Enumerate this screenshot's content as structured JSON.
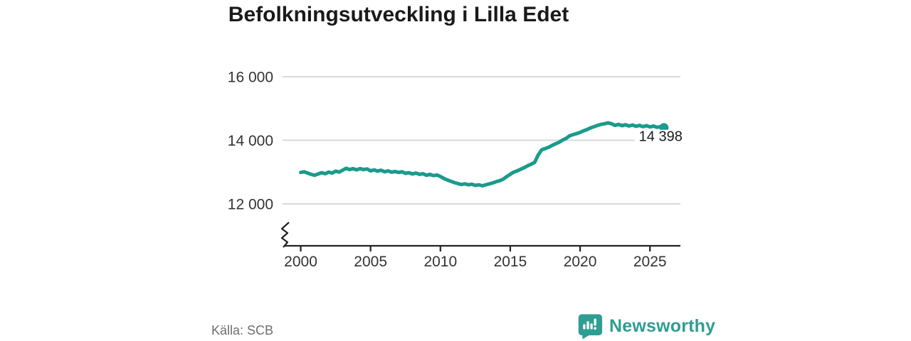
{
  "title": "Befolkningsutveckling i Lilla Edet",
  "colors": {
    "line": "#1a9b8c",
    "brand": "#2f9d92",
    "grid": "#d9d9d9",
    "axis": "#222222",
    "tick_text": "#333333",
    "title_text": "#1a1a1a",
    "muted_text": "#6e6e6e"
  },
  "chart_data": {
    "type": "line",
    "title": "Befolkningsutveckling i Lilla Edet",
    "xlabel": "",
    "ylabel": "",
    "grid": "horizontal",
    "legend": "none",
    "axis_break": true,
    "xlim": [
      1998.7,
      2027.2
    ],
    "ylim": [
      12000,
      16000
    ],
    "y_ticks": [
      {
        "value": 16000,
        "label": "16 000"
      },
      {
        "value": 14000,
        "label": "14 000"
      },
      {
        "value": 12000,
        "label": "12 000"
      }
    ],
    "x_ticks": [
      {
        "value": 2000,
        "label": "2000"
      },
      {
        "value": 2005,
        "label": "2005"
      },
      {
        "value": 2010,
        "label": "2010"
      },
      {
        "value": 2015,
        "label": "2015"
      },
      {
        "value": 2020,
        "label": "2020"
      },
      {
        "value": 2025,
        "label": "2025"
      }
    ],
    "end_label": "14 398",
    "end_value": 14398,
    "series": [
      {
        "name": "Befolkning",
        "x": [
          2000,
          2000.25,
          2000.5,
          2000.75,
          2001,
          2001.25,
          2001.5,
          2001.75,
          2002,
          2002.25,
          2002.5,
          2002.75,
          2003,
          2003.25,
          2003.5,
          2003.75,
          2004,
          2004.25,
          2004.5,
          2004.75,
          2005,
          2005.25,
          2005.5,
          2005.75,
          2006,
          2006.25,
          2006.5,
          2006.75,
          2007,
          2007.25,
          2007.5,
          2007.75,
          2008,
          2008.25,
          2008.5,
          2008.75,
          2009,
          2009.25,
          2009.5,
          2009.75,
          2010,
          2010.25,
          2010.5,
          2010.75,
          2011,
          2011.25,
          2011.5,
          2011.75,
          2012,
          2012.25,
          2012.5,
          2012.75,
          2013,
          2013.25,
          2013.5,
          2013.75,
          2014,
          2014.25,
          2014.5,
          2014.75,
          2015,
          2015.25,
          2015.5,
          2015.75,
          2016,
          2016.25,
          2016.5,
          2016.75,
          2017,
          2017.25,
          2017.5,
          2017.75,
          2018,
          2018.25,
          2018.5,
          2018.75,
          2019,
          2019.25,
          2019.5,
          2019.75,
          2020,
          2020.25,
          2020.5,
          2020.75,
          2021,
          2021.25,
          2021.5,
          2021.75,
          2022,
          2022.25,
          2022.5,
          2022.75,
          2023,
          2023.25,
          2023.5,
          2023.75,
          2024,
          2024.25,
          2024.5,
          2024.75,
          2025,
          2025.25,
          2025.5,
          2025.75,
          2026
        ],
        "values": [
          12990,
          13010,
          12970,
          12930,
          12900,
          12940,
          12980,
          12950,
          13000,
          12970,
          13030,
          13000,
          13060,
          13120,
          13080,
          13110,
          13070,
          13110,
          13080,
          13100,
          13040,
          13070,
          13030,
          13060,
          13010,
          13040,
          13000,
          13020,
          12990,
          13010,
          12960,
          12980,
          12940,
          12970,
          12930,
          12950,
          12900,
          12930,
          12890,
          12910,
          12860,
          12800,
          12750,
          12710,
          12670,
          12640,
          12610,
          12630,
          12600,
          12620,
          12580,
          12600,
          12570,
          12600,
          12630,
          12660,
          12700,
          12730,
          12780,
          12860,
          12930,
          13000,
          13040,
          13090,
          13140,
          13200,
          13250,
          13310,
          13540,
          13700,
          13740,
          13780,
          13840,
          13890,
          13940,
          14010,
          14060,
          14140,
          14180,
          14210,
          14250,
          14300,
          14340,
          14390,
          14430,
          14470,
          14500,
          14520,
          14550,
          14520,
          14470,
          14500,
          14460,
          14490,
          14450,
          14480,
          14440,
          14470,
          14430,
          14460,
          14420,
          14450,
          14410,
          14430,
          14398
        ]
      }
    ]
  },
  "footer": {
    "source": "Källa: SCB",
    "brand": "Newsworthy"
  }
}
